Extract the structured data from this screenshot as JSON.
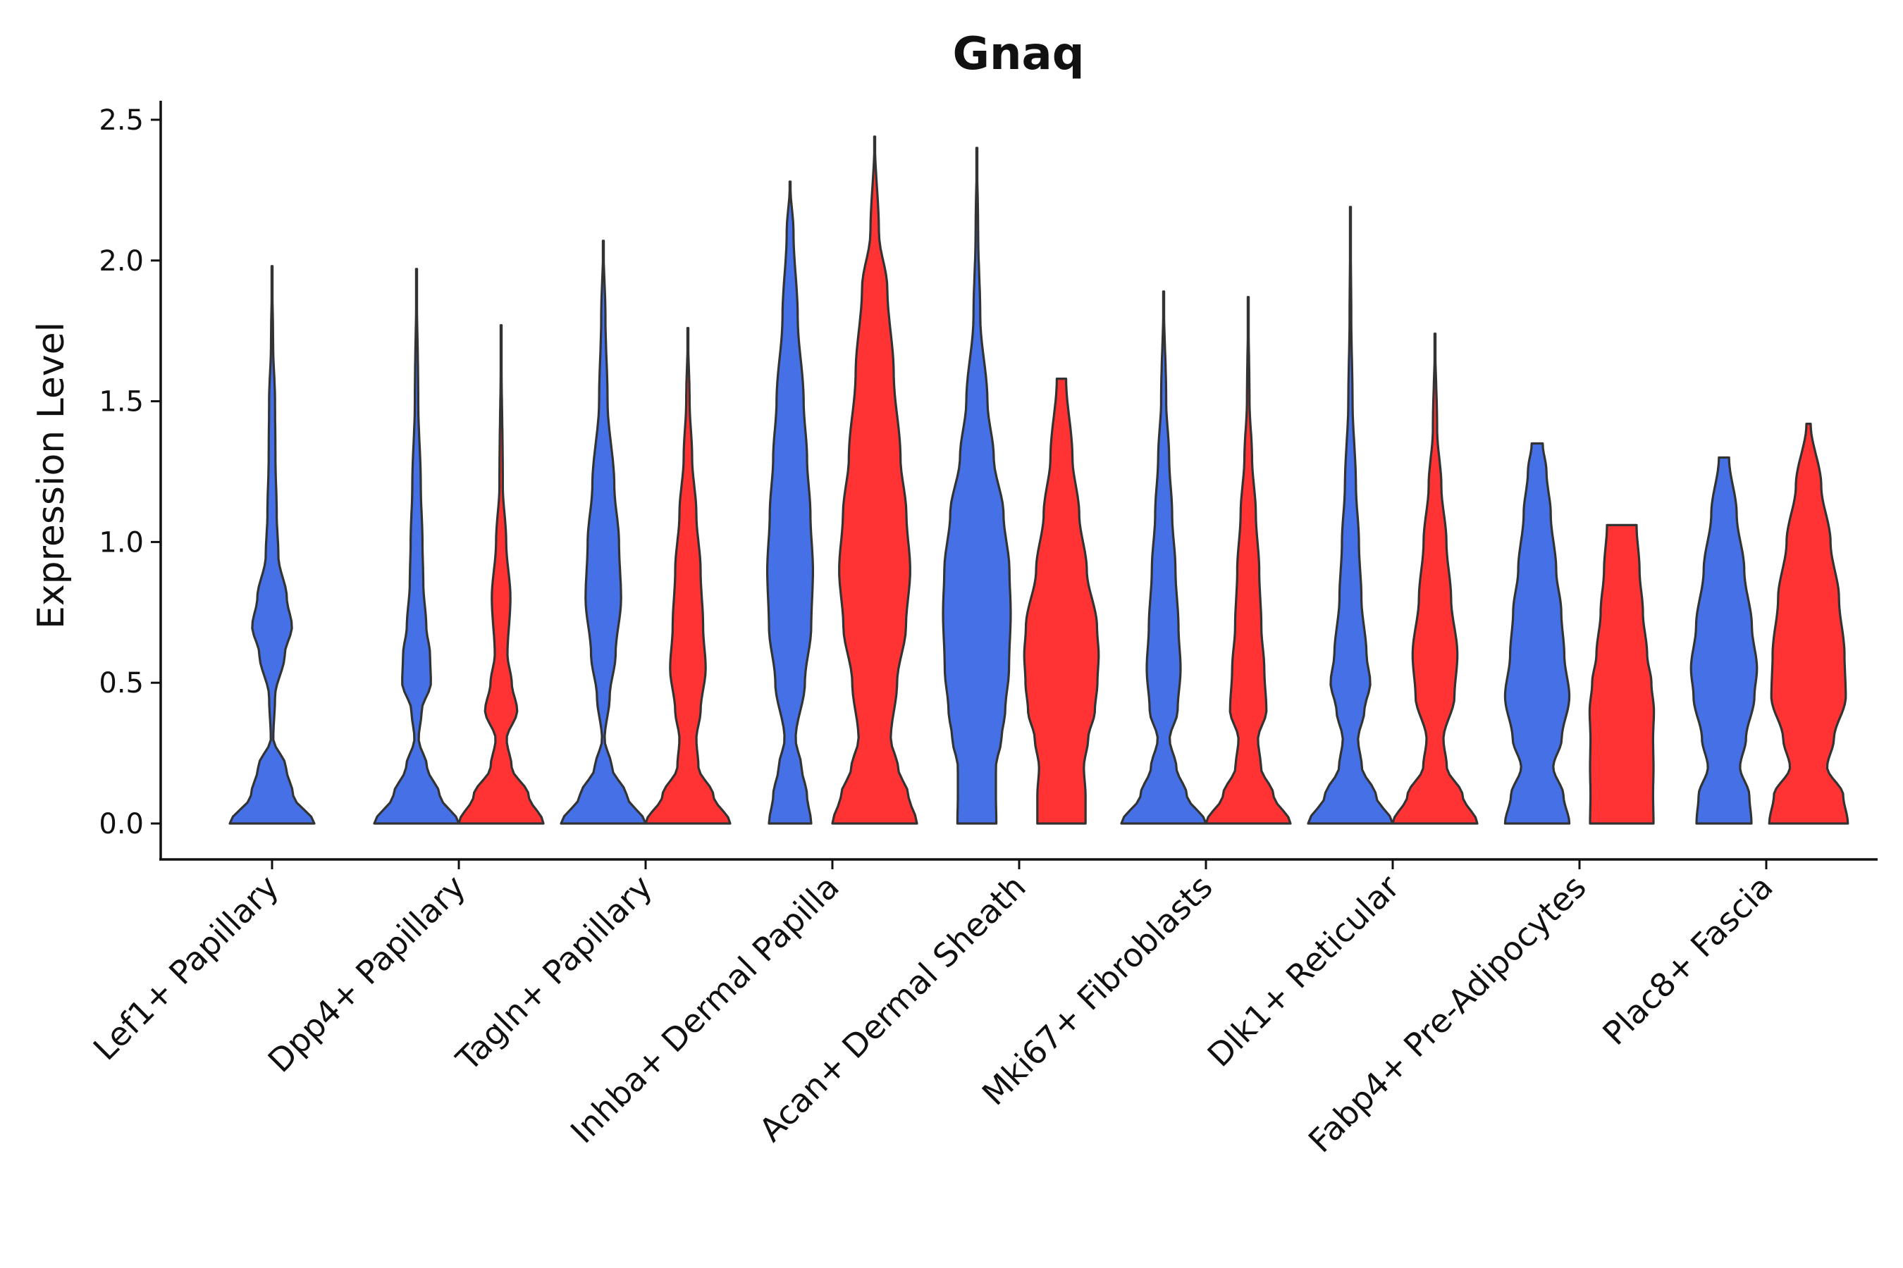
{
  "chart_data": {
    "type": "violin",
    "title": "Gnaq",
    "xlabel": "",
    "ylabel": "Expression Level",
    "ylim": [
      -0.12,
      2.58
    ],
    "yticks": [
      0.0,
      0.5,
      1.0,
      1.5,
      2.0,
      2.5
    ],
    "ytick_labels": [
      "0.0",
      "0.5",
      "1.0",
      "1.5",
      "2.0",
      "2.5"
    ],
    "grid": false,
    "legend": "none",
    "colors": {
      "blue": "#4570E6",
      "red": "#FF3333",
      "outline": "#333333"
    },
    "categories": [
      "Lef1+ Papillary",
      "Dpp4+ Papillary",
      "Tagln+ Papillary",
      "Inhba+ Dermal Papilla",
      "Acan+ Dermal Sheath",
      "Mki67+ Fibroblasts",
      "Dlk1+ Reticular",
      "Fabp4+ Pre-Adipocytes",
      "Plac8+ Fascia"
    ],
    "violins": [
      {
        "category": "Lef1+ Papillary",
        "group": "blue",
        "max": 1.98,
        "flat_top": false,
        "profile": [
          [
            0,
            1.0
          ],
          [
            0.1,
            0.5
          ],
          [
            0.2,
            0.33
          ],
          [
            0.3,
            0.03
          ],
          [
            0.45,
            0.07
          ],
          [
            0.6,
            0.3
          ],
          [
            0.7,
            0.47
          ],
          [
            0.8,
            0.35
          ],
          [
            0.95,
            0.15
          ],
          [
            1.1,
            0.11
          ],
          [
            1.3,
            0.08
          ],
          [
            1.5,
            0.07
          ],
          [
            1.7,
            0.025
          ],
          [
            1.98,
            0.0
          ]
        ]
      },
      {
        "category": "Dpp4+ Papillary",
        "group": "blue",
        "max": 1.97,
        "flat_top": false,
        "profile": [
          [
            0,
            1.0
          ],
          [
            0.1,
            0.55
          ],
          [
            0.2,
            0.25
          ],
          [
            0.3,
            0.05
          ],
          [
            0.4,
            0.12
          ],
          [
            0.5,
            0.34
          ],
          [
            0.6,
            0.32
          ],
          [
            0.7,
            0.23
          ],
          [
            0.85,
            0.16
          ],
          [
            1.0,
            0.14
          ],
          [
            1.2,
            0.1
          ],
          [
            1.5,
            0.04
          ],
          [
            1.97,
            0.0
          ]
        ]
      },
      {
        "category": "Dpp4+ Papillary",
        "group": "red",
        "max": 1.77,
        "flat_top": false,
        "profile": [
          [
            0,
            1.0
          ],
          [
            0.1,
            0.65
          ],
          [
            0.2,
            0.25
          ],
          [
            0.3,
            0.13
          ],
          [
            0.4,
            0.38
          ],
          [
            0.5,
            0.25
          ],
          [
            0.6,
            0.15
          ],
          [
            0.8,
            0.22
          ],
          [
            1.0,
            0.12
          ],
          [
            1.2,
            0.04
          ],
          [
            1.77,
            0.0
          ]
        ]
      },
      {
        "category": "Tagln+ Papillary",
        "group": "blue",
        "max": 2.07,
        "flat_top": false,
        "profile": [
          [
            0,
            1.0
          ],
          [
            0.1,
            0.55
          ],
          [
            0.2,
            0.2
          ],
          [
            0.3,
            0.03
          ],
          [
            0.45,
            0.15
          ],
          [
            0.6,
            0.29
          ],
          [
            0.8,
            0.42
          ],
          [
            1.0,
            0.37
          ],
          [
            1.2,
            0.26
          ],
          [
            1.5,
            0.1
          ],
          [
            1.8,
            0.05
          ],
          [
            2.07,
            0.0
          ]
        ]
      },
      {
        "category": "Tagln+ Papillary",
        "group": "red",
        "max": 1.76,
        "flat_top": false,
        "profile": [
          [
            0,
            1.0
          ],
          [
            0.1,
            0.6
          ],
          [
            0.2,
            0.25
          ],
          [
            0.3,
            0.2
          ],
          [
            0.4,
            0.3
          ],
          [
            0.55,
            0.42
          ],
          [
            0.7,
            0.36
          ],
          [
            0.9,
            0.3
          ],
          [
            1.1,
            0.2
          ],
          [
            1.3,
            0.1
          ],
          [
            1.5,
            0.04
          ],
          [
            1.76,
            0.0
          ]
        ]
      },
      {
        "category": "Inhba+ Dermal Papilla",
        "group": "blue",
        "max": 2.28,
        "flat_top": false,
        "profile": [
          [
            0,
            0.5
          ],
          [
            0.1,
            0.4
          ],
          [
            0.2,
            0.27
          ],
          [
            0.3,
            0.13
          ],
          [
            0.5,
            0.35
          ],
          [
            0.7,
            0.5
          ],
          [
            0.9,
            0.54
          ],
          [
            1.1,
            0.48
          ],
          [
            1.3,
            0.4
          ],
          [
            1.5,
            0.32
          ],
          [
            1.8,
            0.18
          ],
          [
            2.1,
            0.08
          ],
          [
            2.28,
            0.0
          ]
        ]
      },
      {
        "category": "Inhba+ Dermal Papilla",
        "group": "red",
        "max": 2.44,
        "flat_top": false,
        "profile": [
          [
            0,
            1.0
          ],
          [
            0.1,
            0.8
          ],
          [
            0.2,
            0.55
          ],
          [
            0.3,
            0.38
          ],
          [
            0.5,
            0.53
          ],
          [
            0.7,
            0.74
          ],
          [
            0.9,
            0.84
          ],
          [
            1.1,
            0.75
          ],
          [
            1.3,
            0.61
          ],
          [
            1.6,
            0.45
          ],
          [
            1.9,
            0.3
          ],
          [
            2.1,
            0.1
          ],
          [
            2.44,
            0.0
          ]
        ]
      },
      {
        "category": "Acan+ Dermal Sheath",
        "group": "blue",
        "max": 2.4,
        "flat_top": false,
        "profile": [
          [
            0,
            0.46
          ],
          [
            0.1,
            0.45
          ],
          [
            0.2,
            0.45
          ],
          [
            0.3,
            0.58
          ],
          [
            0.4,
            0.67
          ],
          [
            0.55,
            0.76
          ],
          [
            0.75,
            0.8
          ],
          [
            0.9,
            0.77
          ],
          [
            1.1,
            0.63
          ],
          [
            1.3,
            0.4
          ],
          [
            1.5,
            0.25
          ],
          [
            1.8,
            0.08
          ],
          [
            2.1,
            0.03
          ],
          [
            2.4,
            0.0
          ]
        ]
      },
      {
        "category": "Acan+ Dermal Sheath",
        "group": "red",
        "max": 1.58,
        "flat_top": true,
        "profile": [
          [
            0,
            0.57
          ],
          [
            0.1,
            0.57
          ],
          [
            0.2,
            0.53
          ],
          [
            0.3,
            0.63
          ],
          [
            0.4,
            0.79
          ],
          [
            0.5,
            0.85
          ],
          [
            0.6,
            0.88
          ],
          [
            0.7,
            0.84
          ],
          [
            0.9,
            0.6
          ],
          [
            1.1,
            0.42
          ],
          [
            1.3,
            0.26
          ],
          [
            1.58,
            0.11
          ]
        ]
      },
      {
        "category": "Mki67+ Fibroblasts",
        "group": "blue",
        "max": 1.89,
        "flat_top": false,
        "profile": [
          [
            0,
            1.0
          ],
          [
            0.1,
            0.55
          ],
          [
            0.2,
            0.3
          ],
          [
            0.3,
            0.14
          ],
          [
            0.4,
            0.33
          ],
          [
            0.55,
            0.4
          ],
          [
            0.7,
            0.35
          ],
          [
            0.9,
            0.28
          ],
          [
            1.1,
            0.2
          ],
          [
            1.3,
            0.13
          ],
          [
            1.5,
            0.06
          ],
          [
            1.89,
            0.0
          ]
        ]
      },
      {
        "category": "Mki67+ Fibroblasts",
        "group": "red",
        "max": 1.87,
        "flat_top": false,
        "profile": [
          [
            0,
            1.0
          ],
          [
            0.1,
            0.6
          ],
          [
            0.2,
            0.3
          ],
          [
            0.3,
            0.23
          ],
          [
            0.4,
            0.43
          ],
          [
            0.55,
            0.38
          ],
          [
            0.7,
            0.31
          ],
          [
            0.9,
            0.26
          ],
          [
            1.1,
            0.18
          ],
          [
            1.3,
            0.09
          ],
          [
            1.5,
            0.03
          ],
          [
            1.87,
            0.0
          ]
        ]
      },
      {
        "category": "Dlk1+ Reticular",
        "group": "blue",
        "max": 2.19,
        "flat_top": false,
        "profile": [
          [
            0,
            1.0
          ],
          [
            0.1,
            0.6
          ],
          [
            0.2,
            0.27
          ],
          [
            0.3,
            0.18
          ],
          [
            0.4,
            0.33
          ],
          [
            0.5,
            0.47
          ],
          [
            0.6,
            0.38
          ],
          [
            0.8,
            0.26
          ],
          [
            1.0,
            0.2
          ],
          [
            1.2,
            0.13
          ],
          [
            1.5,
            0.05
          ],
          [
            1.8,
            0.02
          ],
          [
            2.19,
            0.0
          ]
        ]
      },
      {
        "category": "Dlk1+ Reticular",
        "group": "red",
        "max": 1.74,
        "flat_top": false,
        "profile": [
          [
            0,
            1.0
          ],
          [
            0.1,
            0.65
          ],
          [
            0.2,
            0.28
          ],
          [
            0.3,
            0.2
          ],
          [
            0.45,
            0.46
          ],
          [
            0.6,
            0.53
          ],
          [
            0.8,
            0.38
          ],
          [
            1.0,
            0.27
          ],
          [
            1.2,
            0.15
          ],
          [
            1.4,
            0.05
          ],
          [
            1.74,
            0.0
          ]
        ]
      },
      {
        "category": "Fabp4+ Pre-Adipocytes",
        "group": "blue",
        "max": 1.35,
        "flat_top": true,
        "profile": [
          [
            0,
            0.76
          ],
          [
            0.1,
            0.62
          ],
          [
            0.2,
            0.38
          ],
          [
            0.3,
            0.58
          ],
          [
            0.45,
            0.76
          ],
          [
            0.6,
            0.64
          ],
          [
            0.75,
            0.57
          ],
          [
            0.9,
            0.45
          ],
          [
            1.1,
            0.32
          ],
          [
            1.25,
            0.22
          ],
          [
            1.35,
            0.13
          ]
        ]
      },
      {
        "category": "Fabp4+ Pre-Adipocytes",
        "group": "red",
        "max": 1.06,
        "flat_top": true,
        "profile": [
          [
            0,
            0.75
          ],
          [
            0.1,
            0.74
          ],
          [
            0.2,
            0.75
          ],
          [
            0.3,
            0.74
          ],
          [
            0.4,
            0.76
          ],
          [
            0.5,
            0.7
          ],
          [
            0.6,
            0.6
          ],
          [
            0.75,
            0.5
          ],
          [
            0.9,
            0.42
          ],
          [
            1.06,
            0.35
          ]
        ]
      },
      {
        "category": "Plac8+ Fascia",
        "group": "blue",
        "max": 1.3,
        "flat_top": true,
        "profile": [
          [
            0,
            0.65
          ],
          [
            0.1,
            0.6
          ],
          [
            0.2,
            0.38
          ],
          [
            0.3,
            0.52
          ],
          [
            0.45,
            0.72
          ],
          [
            0.55,
            0.78
          ],
          [
            0.7,
            0.66
          ],
          [
            0.9,
            0.48
          ],
          [
            1.1,
            0.3
          ],
          [
            1.3,
            0.12
          ]
        ]
      },
      {
        "category": "Plac8+ Fascia",
        "group": "red",
        "max": 1.42,
        "flat_top": true,
        "profile": [
          [
            0,
            0.93
          ],
          [
            0.1,
            0.82
          ],
          [
            0.2,
            0.44
          ],
          [
            0.3,
            0.6
          ],
          [
            0.45,
            0.88
          ],
          [
            0.6,
            0.85
          ],
          [
            0.8,
            0.72
          ],
          [
            1.0,
            0.52
          ],
          [
            1.2,
            0.3
          ],
          [
            1.42,
            0.05
          ]
        ]
      }
    ]
  }
}
